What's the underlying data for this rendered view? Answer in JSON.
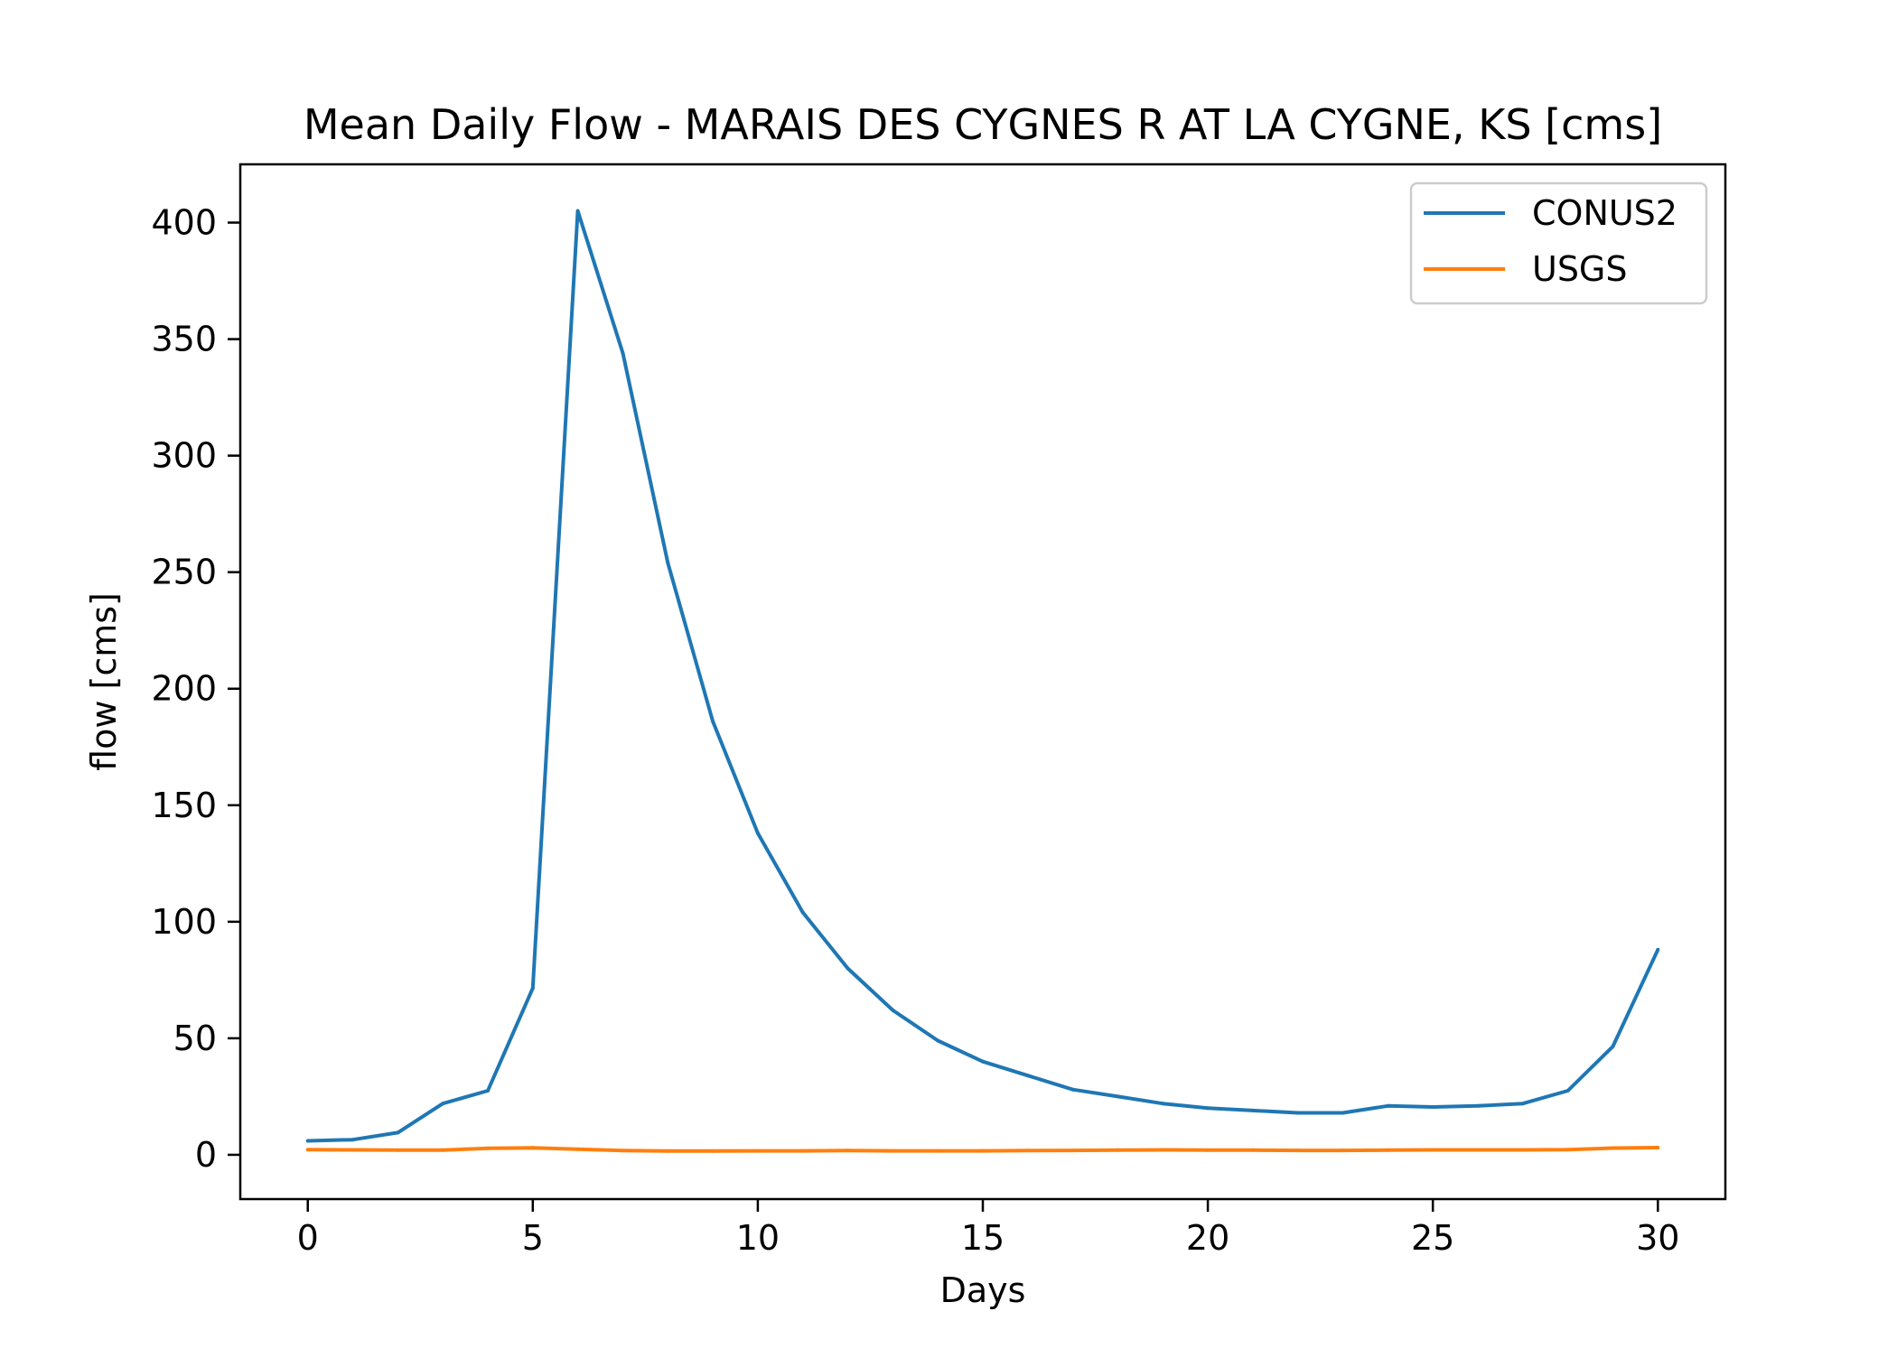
{
  "chart_data": {
    "type": "line",
    "title": "Mean Daily Flow - MARAIS DES CYGNES R AT LA CYGNE, KS [cms]",
    "xlabel": "Days",
    "ylabel": "flow [cms]",
    "xlim": [
      -1.5,
      31.5
    ],
    "ylim": [
      -19,
      425
    ],
    "xticks": [
      0,
      5,
      10,
      15,
      20,
      25,
      30
    ],
    "yticks": [
      0,
      50,
      100,
      150,
      200,
      250,
      300,
      350,
      400
    ],
    "grid": false,
    "legend_position": "top-right",
    "x": [
      0,
      1,
      2,
      3,
      4,
      5,
      6,
      7,
      8,
      9,
      10,
      11,
      12,
      13,
      14,
      15,
      16,
      17,
      18,
      19,
      20,
      21,
      22,
      23,
      24,
      25,
      26,
      27,
      28,
      29,
      30
    ],
    "series": [
      {
        "name": "CONUS2",
        "color": "#1f77b4",
        "values": [
          6,
          6.5,
          9.5,
          22,
          27.5,
          71.5,
          405,
          344,
          254,
          186,
          138,
          104,
          80,
          62,
          49,
          40,
          34,
          28,
          25,
          22,
          20,
          19,
          18,
          18,
          21,
          20.5,
          21,
          22,
          27.5,
          46.5,
          88
        ]
      },
      {
        "name": "USGS",
        "color": "#ff7f0e",
        "values": [
          2.2,
          2.1,
          2.0,
          2.0,
          2.8,
          3.0,
          2.4,
          1.8,
          1.6,
          1.6,
          1.7,
          1.7,
          1.8,
          1.7,
          1.7,
          1.7,
          1.8,
          1.9,
          2.0,
          2.1,
          2.0,
          2.0,
          1.9,
          1.9,
          2.0,
          2.1,
          2.1,
          2.1,
          2.2,
          2.9,
          3.1
        ]
      }
    ]
  }
}
